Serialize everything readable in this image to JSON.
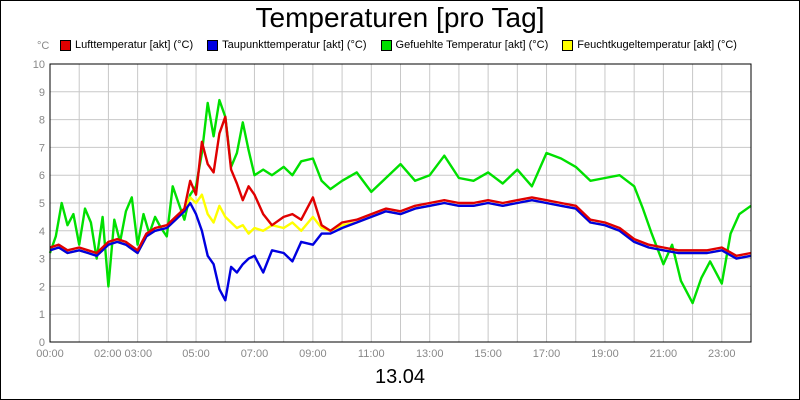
{
  "chart_data": {
    "type": "line",
    "title": "Temperaturen [pro Tag]",
    "xlabel": "13.04",
    "ylabel": "°C",
    "ylim": [
      0,
      10
    ],
    "yticks": [
      0,
      1,
      2,
      3,
      4,
      5,
      6,
      7,
      8,
      9,
      10
    ],
    "xlim": [
      0,
      24
    ],
    "xticks": [
      {
        "value": 0,
        "label": "00:00"
      },
      {
        "value": 2.5,
        "label": "02:00 03:00"
      },
      {
        "value": 5,
        "label": "05:00"
      },
      {
        "value": 7,
        "label": "07:00"
      },
      {
        "value": 9,
        "label": "09:00"
      },
      {
        "value": 11,
        "label": "11:00"
      },
      {
        "value": 13,
        "label": "13:00"
      },
      {
        "value": 15,
        "label": "15:00"
      },
      {
        "value": 17,
        "label": "17:00"
      },
      {
        "value": 19,
        "label": "19:00"
      },
      {
        "value": 21,
        "label": "21:00"
      },
      {
        "value": 23,
        "label": "23:00"
      }
    ],
    "grid": true,
    "legend_position": "top",
    "series": [
      {
        "name": "Lufttemperatur [akt] (°C)",
        "color": "#e00000",
        "x": [
          0,
          0.3,
          0.6,
          1,
          1.3,
          1.6,
          2,
          2.3,
          2.6,
          3,
          3.3,
          3.6,
          4,
          4.3,
          4.6,
          4.8,
          5,
          5.2,
          5.4,
          5.6,
          5.8,
          6,
          6.2,
          6.4,
          6.6,
          6.8,
          7,
          7.3,
          7.6,
          8,
          8.3,
          8.6,
          9,
          9.3,
          9.6,
          10,
          10.5,
          11,
          11.5,
          12,
          12.5,
          13,
          13.5,
          14,
          14.5,
          15,
          15.5,
          16,
          16.5,
          17,
          17.5,
          18,
          18.5,
          19,
          19.5,
          20,
          20.5,
          21,
          21.5,
          22,
          22.5,
          23,
          23.5,
          24
        ],
        "y": [
          3.4,
          3.5,
          3.3,
          3.4,
          3.3,
          3.2,
          3.6,
          3.7,
          3.6,
          3.3,
          3.9,
          4.1,
          4.2,
          4.5,
          4.8,
          5.8,
          5.3,
          7.2,
          6.4,
          6.1,
          7.5,
          8.1,
          6.2,
          5.7,
          5.1,
          5.6,
          5.3,
          4.6,
          4.2,
          4.5,
          4.6,
          4.4,
          5.2,
          4.2,
          4.0,
          4.3,
          4.4,
          4.6,
          4.8,
          4.7,
          4.9,
          5.0,
          5.1,
          5.0,
          5.0,
          5.1,
          5.0,
          5.1,
          5.2,
          5.1,
          5.0,
          4.9,
          4.4,
          4.3,
          4.1,
          3.7,
          3.5,
          3.4,
          3.3,
          3.3,
          3.3,
          3.4,
          3.1,
          3.2
        ]
      },
      {
        "name": "Taupunkttemperatur [akt] (°C)",
        "color": "#0000e0",
        "x": [
          0,
          0.3,
          0.6,
          1,
          1.3,
          1.6,
          2,
          2.3,
          2.6,
          3,
          3.3,
          3.6,
          4,
          4.3,
          4.6,
          4.8,
          5,
          5.2,
          5.4,
          5.6,
          5.8,
          6,
          6.2,
          6.4,
          6.6,
          6.8,
          7,
          7.3,
          7.6,
          8,
          8.3,
          8.6,
          9,
          9.3,
          9.6,
          10,
          10.5,
          11,
          11.5,
          12,
          12.5,
          13,
          13.5,
          14,
          14.5,
          15,
          15.5,
          16,
          16.5,
          17,
          17.5,
          18,
          18.5,
          19,
          19.5,
          20,
          20.5,
          21,
          21.5,
          22,
          22.5,
          23,
          23.5,
          24
        ],
        "y": [
          3.3,
          3.4,
          3.2,
          3.3,
          3.2,
          3.1,
          3.5,
          3.6,
          3.5,
          3.2,
          3.8,
          4.0,
          4.1,
          4.4,
          4.7,
          5.0,
          4.6,
          4.0,
          3.1,
          2.8,
          1.9,
          1.5,
          2.7,
          2.5,
          2.8,
          3.0,
          3.1,
          2.5,
          3.3,
          3.2,
          2.9,
          3.6,
          3.5,
          3.9,
          3.9,
          4.1,
          4.3,
          4.5,
          4.7,
          4.6,
          4.8,
          4.9,
          5.0,
          4.9,
          4.9,
          5.0,
          4.9,
          5.0,
          5.1,
          5.0,
          4.9,
          4.8,
          4.3,
          4.2,
          4.0,
          3.6,
          3.4,
          3.3,
          3.2,
          3.2,
          3.2,
          3.3,
          3.0,
          3.1
        ]
      },
      {
        "name": "Gefuehlte Temperatur [akt] (°C)",
        "color": "#00e000",
        "x": [
          0,
          0.2,
          0.4,
          0.6,
          0.8,
          1,
          1.2,
          1.4,
          1.6,
          1.8,
          2,
          2.2,
          2.4,
          2.6,
          2.8,
          3,
          3.2,
          3.4,
          3.6,
          3.8,
          4,
          4.2,
          4.4,
          4.6,
          4.8,
          5,
          5.2,
          5.4,
          5.6,
          5.8,
          6,
          6.2,
          6.4,
          6.6,
          6.8,
          7,
          7.3,
          7.6,
          8,
          8.3,
          8.6,
          9,
          9.3,
          9.6,
          10,
          10.5,
          11,
          11.5,
          12,
          12.5,
          13,
          13.5,
          14,
          14.5,
          15,
          15.5,
          16,
          16.5,
          17,
          17.5,
          18,
          18.5,
          19,
          19.5,
          20,
          20.3,
          20.6,
          21,
          21.3,
          21.6,
          22,
          22.3,
          22.6,
          23,
          23.3,
          23.6,
          24
        ],
        "y": [
          3.2,
          3.8,
          5.0,
          4.2,
          4.6,
          3.5,
          4.8,
          4.3,
          3.0,
          4.5,
          2.0,
          4.4,
          3.6,
          4.7,
          5.2,
          3.5,
          4.6,
          3.9,
          4.5,
          4.1,
          3.8,
          5.6,
          5.0,
          4.4,
          5.3,
          5.6,
          6.8,
          8.6,
          7.4,
          8.7,
          8.1,
          6.3,
          6.8,
          7.9,
          6.9,
          6.0,
          6.2,
          6.0,
          6.3,
          6.0,
          6.5,
          6.6,
          5.8,
          5.5,
          5.8,
          6.1,
          5.4,
          5.9,
          6.4,
          5.8,
          6.0,
          6.7,
          5.9,
          5.8,
          6.1,
          5.7,
          6.2,
          5.6,
          6.8,
          6.6,
          6.3,
          5.8,
          5.9,
          6.0,
          5.6,
          4.8,
          3.9,
          2.8,
          3.5,
          2.2,
          1.4,
          2.3,
          2.9,
          2.1,
          3.9,
          4.6,
          4.9
        ]
      },
      {
        "name": "Feuchtkugeltemperatur [akt] (°C)",
        "color": "#ffff00",
        "x": [
          0,
          0.3,
          0.6,
          1,
          1.3,
          1.6,
          2,
          2.3,
          2.6,
          3,
          3.3,
          3.6,
          4,
          4.3,
          4.6,
          4.8,
          5,
          5.2,
          5.4,
          5.6,
          5.8,
          6,
          6.2,
          6.4,
          6.6,
          6.8,
          7,
          7.3,
          7.6,
          8,
          8.3,
          8.6,
          9,
          9.3,
          9.6,
          10,
          10.5,
          11,
          11.5,
          12,
          12.5,
          13,
          13.5,
          14,
          14.5,
          15,
          15.5,
          16,
          16.5,
          17,
          17.5,
          18,
          18.5,
          19,
          19.5,
          20,
          20.5,
          21,
          21.5,
          22,
          22.5,
          23,
          23.5,
          24
        ],
        "y": [
          3.3,
          3.4,
          3.2,
          3.3,
          3.2,
          3.1,
          3.5,
          3.6,
          3.5,
          3.2,
          3.8,
          4.0,
          4.1,
          4.4,
          4.7,
          5.2,
          5.0,
          5.3,
          4.6,
          4.3,
          4.9,
          4.5,
          4.3,
          4.1,
          4.2,
          3.9,
          4.1,
          4.0,
          4.2,
          4.1,
          4.3,
          4.0,
          4.5,
          4.1,
          4.0,
          4.2,
          4.3,
          4.5,
          4.7,
          4.6,
          4.8,
          4.9,
          5.0,
          4.9,
          4.9,
          5.0,
          4.9,
          5.0,
          5.1,
          5.0,
          4.9,
          4.8,
          4.3,
          4.2,
          4.0,
          3.6,
          3.4,
          3.3,
          3.2,
          3.2,
          3.2,
          3.3,
          3.0,
          3.1
        ]
      }
    ]
  }
}
